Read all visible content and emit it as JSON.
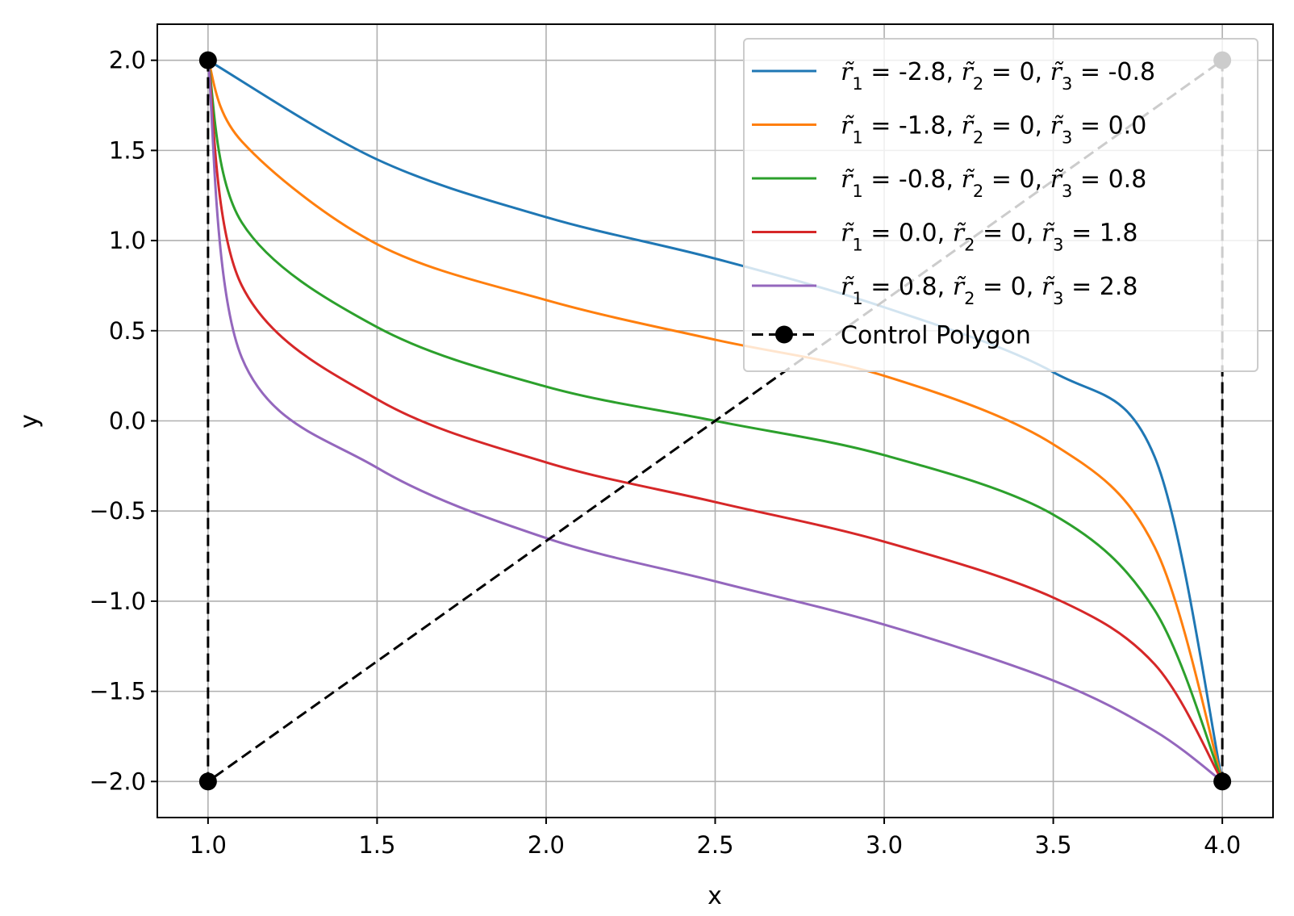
{
  "chart_data": {
    "type": "line",
    "title": "",
    "xlabel": "x",
    "ylabel": "y",
    "xlim": [
      0.85,
      4.15
    ],
    "ylim": [
      -2.2,
      2.2
    ],
    "xticks": [
      1.0,
      1.5,
      2.0,
      2.5,
      3.0,
      3.5,
      4.0
    ],
    "yticks": [
      2.0,
      1.5,
      1.0,
      0.5,
      0.0,
      -0.5,
      -1.0,
      -1.5,
      -2.0
    ],
    "xtick_labels": [
      "1.0",
      "1.5",
      "2.0",
      "2.5",
      "3.0",
      "3.5",
      "4.0"
    ],
    "ytick_labels": [
      "2.0",
      "1.5",
      "1.0",
      "0.5",
      "0.0",
      "−0.5",
      "−1.0",
      "−1.5",
      "−2.0"
    ],
    "grid": true,
    "legend_position": "upper-right",
    "series": [
      {
        "name": "r̃₁ = -2.8, r̃₂ = 0, r̃₃ = -0.8",
        "legend_parts": [
          {
            "math": "r̃",
            "sub": "1",
            "text": " = -2.8, "
          },
          {
            "math": "r̃",
            "sub": "2",
            "text": " = 0, "
          },
          {
            "math": "r̃",
            "sub": "3",
            "text": " = -0.8"
          }
        ],
        "color": "#1f77b4",
        "x": [
          1.0,
          1.5,
          2.0,
          2.5,
          3.0,
          3.5,
          3.8,
          4.0
        ],
        "y": [
          2.0,
          1.45,
          1.13,
          0.9,
          0.63,
          0.27,
          -0.2,
          -2.0
        ]
      },
      {
        "name": "r̃₁ = -1.8, r̃₂ = 0, r̃₃ = 0.0",
        "legend_parts": [
          {
            "math": "r̃",
            "sub": "1",
            "text": " = -1.8, "
          },
          {
            "math": "r̃",
            "sub": "2",
            "text": " = 0, "
          },
          {
            "math": "r̃",
            "sub": "3",
            "text": " = 0.0"
          }
        ],
        "color": "#ff7f0e",
        "x": [
          1.0,
          1.1,
          1.5,
          2.0,
          2.5,
          3.0,
          3.5,
          3.8,
          4.0
        ],
        "y": [
          2.0,
          1.55,
          0.98,
          0.67,
          0.45,
          0.25,
          -0.13,
          -0.7,
          -2.0
        ]
      },
      {
        "name": "r̃₁ = -0.8, r̃₂ = 0, r̃₃ = 0.8",
        "legend_parts": [
          {
            "math": "r̃",
            "sub": "1",
            "text": " = -0.8, "
          },
          {
            "math": "r̃",
            "sub": "2",
            "text": " = 0, "
          },
          {
            "math": "r̃",
            "sub": "3",
            "text": " = 0.8"
          }
        ],
        "color": "#2ca02c",
        "x": [
          1.0,
          1.1,
          1.5,
          2.0,
          2.5,
          3.0,
          3.5,
          3.8,
          4.0
        ],
        "y": [
          2.0,
          1.1,
          0.52,
          0.19,
          0.0,
          -0.19,
          -0.52,
          -1.05,
          -2.0
        ]
      },
      {
        "name": "r̃₁ = 0.0, r̃₂ = 0, r̃₃ = 1.8",
        "legend_parts": [
          {
            "math": "r̃",
            "sub": "1",
            "text": " = 0.0, "
          },
          {
            "math": "r̃",
            "sub": "2",
            "text": " = 0, "
          },
          {
            "math": "r̃",
            "sub": "3",
            "text": " = 1.8"
          }
        ],
        "color": "#d62728",
        "x": [
          1.0,
          1.1,
          1.5,
          2.0,
          2.5,
          3.0,
          3.5,
          3.8,
          4.0
        ],
        "y": [
          2.0,
          0.75,
          0.12,
          -0.23,
          -0.45,
          -0.67,
          -0.98,
          -1.35,
          -2.0
        ]
      },
      {
        "name": "r̃₁ = 0.8, r̃₂ = 0, r̃₃ = 2.8",
        "legend_parts": [
          {
            "math": "r̃",
            "sub": "1",
            "text": " = 0.8, "
          },
          {
            "math": "r̃",
            "sub": "2",
            "text": " = 0, "
          },
          {
            "math": "r̃",
            "sub": "3",
            "text": " = 2.8"
          }
        ],
        "color": "#9467bd",
        "x": [
          1.0,
          1.1,
          1.5,
          2.0,
          2.5,
          3.0,
          3.5,
          3.8,
          4.0
        ],
        "y": [
          2.0,
          0.35,
          -0.26,
          -0.65,
          -0.89,
          -1.13,
          -1.44,
          -1.72,
          -2.0
        ]
      }
    ],
    "control_polygon": {
      "name": "Control Polygon",
      "color": "#000000",
      "style": "dashed",
      "marker": "circle",
      "x": [
        1.0,
        1.0,
        4.0,
        4.0
      ],
      "y": [
        2.0,
        -2.0,
        2.0,
        -2.0
      ]
    }
  }
}
